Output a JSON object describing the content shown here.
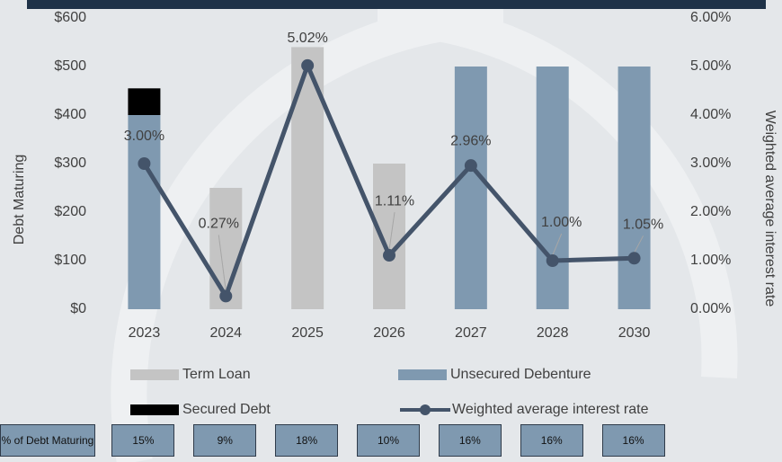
{
  "chart_data": {
    "type": "bar-line",
    "categories": [
      "2023",
      "2024",
      "2025",
      "2026",
      "2027",
      "2028",
      "2030"
    ],
    "series": [
      {
        "name": "Term Loan",
        "type": "bar",
        "color": "#c4c4c4",
        "values": [
          null,
          250,
          540,
          300,
          null,
          null,
          null
        ]
      },
      {
        "name": "Unsecured Debenture",
        "type": "bar",
        "color": "#7f99b0",
        "values": [
          400,
          null,
          null,
          null,
          500,
          500,
          500
        ]
      },
      {
        "name": "Secured Debt",
        "type": "bar",
        "color": "#000000",
        "values": [
          55,
          null,
          null,
          null,
          null,
          null,
          null
        ]
      },
      {
        "name": "Weighted average interest rate",
        "type": "line",
        "axis": "y2",
        "color": "#44546a",
        "values": [
          3.0,
          0.27,
          5.02,
          1.11,
          2.96,
          1.0,
          1.05
        ],
        "value_labels": [
          "3.00%",
          "0.27%",
          "5.02%",
          "1.11%",
          "2.96%",
          "1.00%",
          "1.05%"
        ]
      }
    ],
    "ylabel": "Debt Maturing",
    "y2label": "Weighted average interest rate",
    "ylim": [
      0,
      600
    ],
    "yticks": [
      {
        "value": 0,
        "label": "$0"
      },
      {
        "value": 100,
        "label": "$100"
      },
      {
        "value": 200,
        "label": "$200"
      },
      {
        "value": 300,
        "label": "$300"
      },
      {
        "value": 400,
        "label": "$400"
      },
      {
        "value": 500,
        "label": "$500"
      },
      {
        "value": 600,
        "label": "$600"
      }
    ],
    "y2lim": [
      0,
      6
    ],
    "y2ticks": [
      {
        "value": 0,
        "label": "0.00%"
      },
      {
        "value": 1,
        "label": "1.00%"
      },
      {
        "value": 2,
        "label": "2.00%"
      },
      {
        "value": 3,
        "label": "3.00%"
      },
      {
        "value": 4,
        "label": "4.00%"
      },
      {
        "value": 5,
        "label": "5.00%"
      },
      {
        "value": 6,
        "label": "6.00%"
      }
    ],
    "grid": false,
    "legend": "bottom"
  },
  "table": {
    "header": "% of Debt Maturing",
    "cells": [
      "15%",
      "9%",
      "18%",
      "10%",
      "16%",
      "16%",
      "16%"
    ]
  }
}
